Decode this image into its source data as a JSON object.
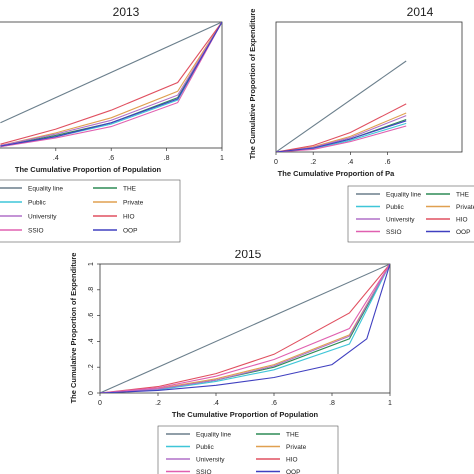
{
  "chart_data": [
    {
      "type": "line",
      "title": "2013",
      "xlabel": "The Cumulative Proportion of Population",
      "ylabel": "",
      "xlim": [
        0,
        1
      ],
      "ylim": [
        0,
        1
      ],
      "xticks": [
        ".4",
        ".6",
        ".8",
        "1"
      ],
      "xtick_values": [
        0.4,
        0.6,
        0.8,
        1
      ],
      "yticks": [],
      "series": [
        {
          "name": "Equality line",
          "color": "#6b7f8c",
          "x": [
            0.2,
            1
          ],
          "y": [
            0.2,
            1
          ]
        },
        {
          "name": "THE",
          "color": "#2e8b57",
          "x": [
            0.2,
            0.4,
            0.6,
            0.84,
            1
          ],
          "y": [
            0.015,
            0.1,
            0.2,
            0.4,
            1
          ]
        },
        {
          "name": "Public",
          "color": "#3fc6d8",
          "x": [
            0.2,
            0.4,
            0.6,
            0.84,
            1
          ],
          "y": [
            0.01,
            0.09,
            0.19,
            0.38,
            1
          ]
        },
        {
          "name": "Private",
          "color": "#e0a050",
          "x": [
            0.2,
            0.4,
            0.6,
            0.84,
            1
          ],
          "y": [
            0.02,
            0.12,
            0.24,
            0.45,
            1
          ]
        },
        {
          "name": "University",
          "color": "#b070c8",
          "x": [
            0.2,
            0.4,
            0.6,
            0.84,
            1
          ],
          "y": [
            0.02,
            0.11,
            0.22,
            0.42,
            1
          ]
        },
        {
          "name": "HIO",
          "color": "#e05060",
          "x": [
            0.2,
            0.4,
            0.6,
            0.84,
            1
          ],
          "y": [
            0.03,
            0.15,
            0.3,
            0.52,
            1
          ]
        },
        {
          "name": "SSIO",
          "color": "#e060b0",
          "x": [
            0.2,
            0.4,
            0.6,
            0.84,
            1
          ],
          "y": [
            0.01,
            0.08,
            0.17,
            0.36,
            1
          ]
        },
        {
          "name": "OOP",
          "color": "#4040c0",
          "x": [
            0.2,
            0.4,
            0.6,
            0.84,
            1
          ],
          "y": [
            0.015,
            0.09,
            0.2,
            0.39,
            1
          ]
        }
      ],
      "legend": {
        "placement": "bottom",
        "columns": 2
      }
    },
    {
      "type": "line",
      "title": "2014",
      "xlabel": "The Cumulative Proportion of Pa",
      "ylabel": "The Cumulative Proportion of Expenditure",
      "xlim": [
        0,
        1
      ],
      "ylim": [
        0,
        1
      ],
      "xticks": [
        "0",
        ".2",
        ".4",
        ".6"
      ],
      "xtick_values": [
        0,
        0.2,
        0.4,
        0.6
      ],
      "yticks": [],
      "series": [
        {
          "name": "Equality line",
          "color": "#6b7f8c",
          "x": [
            0,
            0.7
          ],
          "y": [
            0,
            0.7
          ]
        },
        {
          "name": "THE",
          "color": "#2e8b57",
          "x": [
            0,
            0.2,
            0.4,
            0.7
          ],
          "y": [
            0,
            0.03,
            0.1,
            0.25
          ]
        },
        {
          "name": "Public",
          "color": "#3fc6d8",
          "x": [
            0,
            0.2,
            0.4,
            0.7
          ],
          "y": [
            0,
            0.025,
            0.09,
            0.22
          ]
        },
        {
          "name": "Private",
          "color": "#e0a050",
          "x": [
            0,
            0.2,
            0.4,
            0.7
          ],
          "y": [
            0,
            0.04,
            0.12,
            0.3
          ]
        },
        {
          "name": "University",
          "color": "#b070c8",
          "x": [
            0,
            0.2,
            0.4,
            0.7
          ],
          "y": [
            0,
            0.035,
            0.11,
            0.28
          ]
        },
        {
          "name": "HIO",
          "color": "#e05060",
          "x": [
            0,
            0.2,
            0.4,
            0.7
          ],
          "y": [
            0,
            0.05,
            0.15,
            0.37
          ]
        },
        {
          "name": "SSIO",
          "color": "#e060b0",
          "x": [
            0,
            0.2,
            0.4,
            0.7
          ],
          "y": [
            0,
            0.02,
            0.08,
            0.2
          ]
        },
        {
          "name": "OOP",
          "color": "#4040c0",
          "x": [
            0,
            0.2,
            0.4,
            0.7
          ],
          "y": [
            0,
            0.03,
            0.1,
            0.24
          ]
        }
      ],
      "legend": {
        "placement": "bottom",
        "columns": 2
      }
    },
    {
      "type": "line",
      "title": "2015",
      "xlabel": "The Cumulative Proportion of Population",
      "ylabel": "The Cumulative Proportion of Expenditure",
      "xlim": [
        0,
        1
      ],
      "ylim": [
        0,
        1
      ],
      "xticks": [
        "0",
        ".2",
        ".4",
        ".6",
        ".8",
        "1"
      ],
      "xtick_values": [
        0,
        0.2,
        0.4,
        0.6,
        0.8,
        1
      ],
      "yticks": [
        "0",
        ".2",
        ".4",
        ".6",
        ".8",
        "1"
      ],
      "ytick_values": [
        0,
        0.2,
        0.4,
        0.6,
        0.8,
        1
      ],
      "series": [
        {
          "name": "Equality line",
          "color": "#6b7f8c",
          "x": [
            0,
            1
          ],
          "y": [
            0,
            1
          ]
        },
        {
          "name": "THE",
          "color": "#2e8b57",
          "x": [
            0,
            0.2,
            0.4,
            0.6,
            0.86,
            1
          ],
          "y": [
            0,
            0.03,
            0.1,
            0.2,
            0.42,
            1
          ]
        },
        {
          "name": "Public",
          "color": "#3fc6d8",
          "x": [
            0,
            0.2,
            0.4,
            0.6,
            0.86,
            1
          ],
          "y": [
            0,
            0.025,
            0.09,
            0.18,
            0.38,
            1
          ]
        },
        {
          "name": "Private",
          "color": "#e0a050",
          "x": [
            0,
            0.2,
            0.4,
            0.6,
            0.86,
            1
          ],
          "y": [
            0,
            0.035,
            0.11,
            0.22,
            0.45,
            1
          ]
        },
        {
          "name": "University",
          "color": "#b070c8",
          "x": [
            0,
            0.2,
            0.4,
            0.6,
            0.86,
            1
          ],
          "y": [
            0,
            0.03,
            0.1,
            0.21,
            0.44,
            1
          ]
        },
        {
          "name": "HIO",
          "color": "#e05060",
          "x": [
            0,
            0.2,
            0.4,
            0.6,
            0.86,
            1
          ],
          "y": [
            0,
            0.05,
            0.15,
            0.3,
            0.62,
            1
          ]
        },
        {
          "name": "SSIO",
          "color": "#e060b0",
          "x": [
            0,
            0.2,
            0.4,
            0.6,
            0.86,
            1
          ],
          "y": [
            0,
            0.04,
            0.13,
            0.26,
            0.5,
            1
          ]
        },
        {
          "name": "OOP",
          "color": "#4040c0",
          "x": [
            0,
            0.2,
            0.4,
            0.6,
            0.8,
            0.92,
            1
          ],
          "y": [
            0,
            0.02,
            0.06,
            0.12,
            0.22,
            0.42,
            1
          ]
        }
      ],
      "legend": {
        "placement": "bottom",
        "columns": 2
      }
    }
  ]
}
